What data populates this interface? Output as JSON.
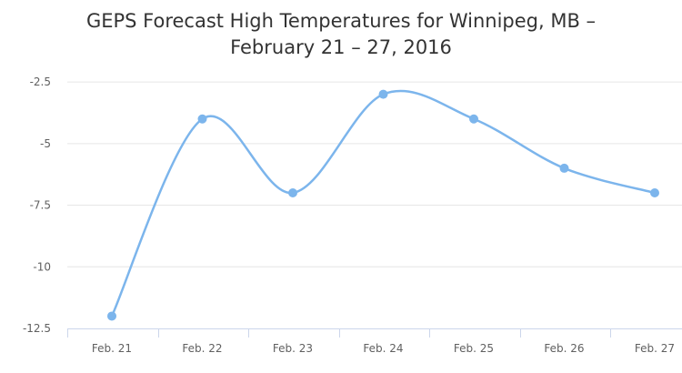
{
  "chart_data": {
    "type": "line",
    "title_lines": [
      "GEPS Forecast High Temperatures for Winnipeg, MB –",
      "February 21 – 27, 2016"
    ],
    "categories": [
      "Feb. 21",
      "Feb. 22",
      "Feb. 23",
      "Feb. 24",
      "Feb. 25",
      "Feb. 26",
      "Feb. 27"
    ],
    "series": [
      {
        "values": [
          -12,
          -4,
          -7,
          -3,
          -4,
          -6,
          -7
        ]
      }
    ],
    "yticks": [
      -2.5,
      -5,
      -7.5,
      -10,
      -12.5
    ],
    "ytick_labels": [
      "-2.5",
      "-5",
      "-7.5",
      "-10",
      "-12.5"
    ],
    "ylim": [
      -12.5,
      -1.5
    ],
    "grid": true,
    "legend": false,
    "line_smooth": true,
    "colors": {
      "series": "#7cb5ec",
      "grid": "#e6e6e6",
      "axis": "#ccd6eb",
      "title": "#333333",
      "tick_text": "#606060"
    }
  }
}
